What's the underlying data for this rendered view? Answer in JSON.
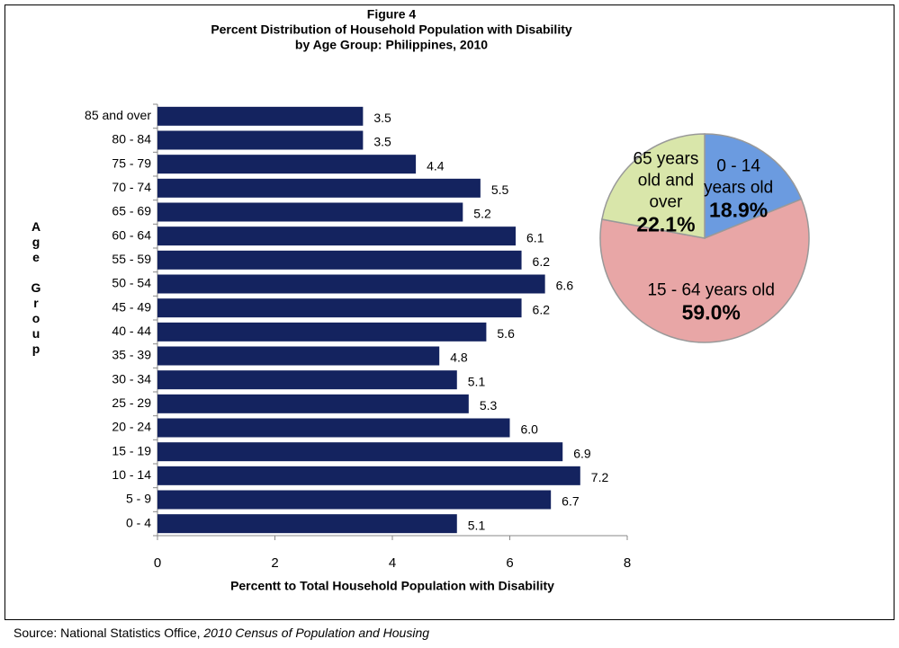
{
  "chart_data": [
    {
      "type": "barh",
      "title_lines": [
        "Figure 4",
        "Percent Distribution of Household Population with Disability",
        "by Age Group: Philippines, 2010"
      ],
      "categories": [
        "85 and over",
        "80 - 84",
        "75 - 79",
        "70 - 74",
        "65 - 69",
        "60 - 64",
        "55 - 59",
        "50 - 54",
        "45 - 49",
        "40 - 44",
        "35 - 39",
        "30 - 34",
        "25 - 29",
        "20 - 24",
        "15 - 19",
        "10 - 14",
        "5 - 9",
        "0 - 4"
      ],
      "values": [
        3.5,
        3.5,
        4.4,
        5.5,
        5.2,
        6.1,
        6.2,
        6.6,
        6.2,
        5.6,
        4.8,
        5.1,
        5.3,
        6.0,
        6.9,
        7.2,
        6.7,
        5.1
      ],
      "value_labels": [
        "3.5",
        "3.5",
        "4.4",
        "5.5",
        "5.2",
        "6.1",
        "6.2",
        "6.6",
        "6.2",
        "5.6",
        "4.8",
        "5.1",
        "5.3",
        "6.0",
        "6.9",
        "7.2",
        "6.7",
        "5.1"
      ],
      "color": "#14235f",
      "xlim": [
        0,
        8
      ],
      "xticks": [
        0,
        2,
        4,
        6,
        8
      ],
      "x_label": "Percentt to Total Household Population with Disability",
      "y_label": "Age Group"
    },
    {
      "type": "pie",
      "categories": [
        "0 - 14 years old",
        "15 - 64 years old",
        "65 years old and over"
      ],
      "values": [
        18.9,
        59.0,
        22.1
      ],
      "value_labels": [
        "18.9%",
        "59.0%",
        "22.1%"
      ],
      "colors": [
        "#6b9be0",
        "#e8a6a6",
        "#d9e6aa"
      ]
    }
  ],
  "source": "Source: National Statistics Office,",
  "source_title": "2010 Census of Population and Housing"
}
